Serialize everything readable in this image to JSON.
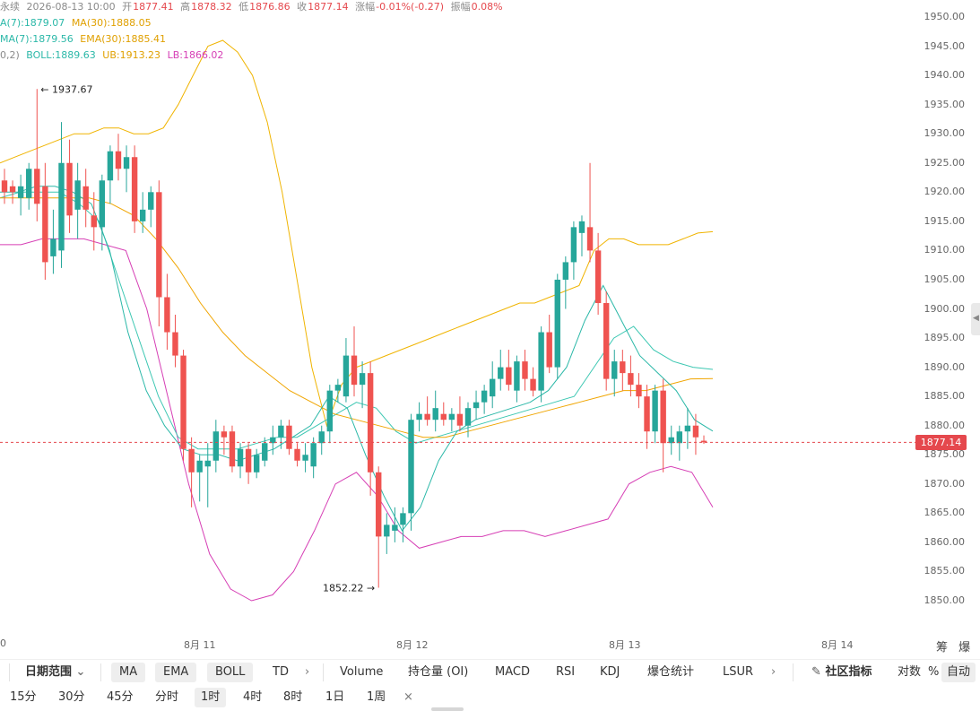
{
  "legend": {
    "line1": {
      "symbol": "永续",
      "datetime": "2026-08-13 10:00",
      "open_label": "开",
      "open": "1877.41",
      "high_label": "高",
      "high": "1878.32",
      "low_label": "低",
      "low": "1876.86",
      "close_label": "收",
      "close": "1877.14",
      "change_label": "涨幅",
      "change": "-0.01%(-0.27)",
      "amp_label": "振幅",
      "amp": "0.08%"
    },
    "line2": {
      "ma7": "A(7):1879.07",
      "ma30": "MA(30):1888.05"
    },
    "line3": {
      "ema7": "MA(7):1879.56",
      "ema30": "EMA(30):1885.41"
    },
    "line4": {
      "boll_params": "0,2)",
      "boll": "BOLL:1889.63",
      "ub": "UB:1913.23",
      "lb": "LB:1866.02"
    }
  },
  "colors": {
    "up": "#26a69a",
    "down": "#ef5350",
    "ma7": "#2bb8a8",
    "ma30": "#f0a500",
    "boll": "#3cc7b2",
    "ub": "#f0b400",
    "lb": "#d63fb5",
    "price_line": "#e5484d",
    "gray_text": "#8a8a8a"
  },
  "annotations": {
    "high_marker": "← 1937.67",
    "low_marker": "1852.22 →"
  },
  "y_axis": {
    "ticks": [
      "1950.00",
      "1945.00",
      "1940.00",
      "1935.00",
      "1930.00",
      "1925.00",
      "1920.00",
      "1915.00",
      "1910.00",
      "1905.00",
      "1900.00",
      "1895.00",
      "1890.00",
      "1885.00",
      "1880.00",
      "1875.00",
      "1870.00",
      "1865.00",
      "1860.00",
      "1855.00",
      "1850.00"
    ],
    "current_price": "1877.14"
  },
  "x_axis": {
    "labels": [
      "0",
      "8月 11",
      "8月 12",
      "8月 13",
      "8月 14"
    ],
    "corner": "筹 爆"
  },
  "toolbar": {
    "date_range": "日期范围",
    "indicators_main": [
      "MA",
      "EMA",
      "BOLL",
      "TD"
    ],
    "indicators_sub": [
      "Volume",
      "持仓量 (OI)",
      "MACD",
      "RSI",
      "KDJ",
      "爆仓统计",
      "LSUR"
    ],
    "community": "社区指标",
    "log": "对数",
    "percent": "%",
    "auto": "自动"
  },
  "intervals": {
    "items": [
      "15分",
      "30分",
      "45分",
      "分时",
      "1时",
      "4时",
      "8时",
      "1日",
      "1周"
    ],
    "active": "1时",
    "close": "×"
  },
  "chart_data": {
    "type": "candlestick",
    "title": "",
    "ylim": [
      1846,
      1952
    ],
    "y_ticks_step": 5,
    "series_candles": [
      {
        "t": 0,
        "o": 1922,
        "h": 1924,
        "l": 1918,
        "c": 1920
      },
      {
        "t": 1,
        "o": 1921,
        "h": 1922,
        "l": 1918,
        "c": 1920
      },
      {
        "t": 2,
        "o": 1919,
        "h": 1923,
        "l": 1916,
        "c": 1921
      },
      {
        "t": 3,
        "o": 1919,
        "h": 1925,
        "l": 1917,
        "c": 1924
      },
      {
        "t": 4,
        "o": 1924,
        "h": 1937.67,
        "l": 1915,
        "c": 1918
      },
      {
        "t": 5,
        "o": 1921,
        "h": 1925,
        "l": 1905,
        "c": 1908
      },
      {
        "t": 6,
        "o": 1909,
        "h": 1917,
        "l": 1906,
        "c": 1912
      },
      {
        "t": 7,
        "o": 1910,
        "h": 1932,
        "l": 1907,
        "c": 1925
      },
      {
        "t": 8,
        "o": 1925,
        "h": 1929,
        "l": 1913,
        "c": 1916
      },
      {
        "t": 9,
        "o": 1917,
        "h": 1925,
        "l": 1912,
        "c": 1922
      },
      {
        "t": 10,
        "o": 1921,
        "h": 1924,
        "l": 1914,
        "c": 1917
      },
      {
        "t": 11,
        "o": 1916,
        "h": 1920,
        "l": 1910,
        "c": 1914
      },
      {
        "t": 12,
        "o": 1914,
        "h": 1923,
        "l": 1910,
        "c": 1922
      },
      {
        "t": 13,
        "o": 1922,
        "h": 1928,
        "l": 1918,
        "c": 1927
      },
      {
        "t": 14,
        "o": 1927,
        "h": 1930,
        "l": 1922,
        "c": 1924
      },
      {
        "t": 15,
        "o": 1924,
        "h": 1928,
        "l": 1920,
        "c": 1926
      },
      {
        "t": 16,
        "o": 1926,
        "h": 1928,
        "l": 1913,
        "c": 1915
      },
      {
        "t": 17,
        "o": 1915,
        "h": 1920,
        "l": 1913,
        "c": 1917
      },
      {
        "t": 18,
        "o": 1917,
        "h": 1921,
        "l": 1914,
        "c": 1920
      },
      {
        "t": 19,
        "o": 1920,
        "h": 1922,
        "l": 1897,
        "c": 1902
      },
      {
        "t": 20,
        "o": 1902,
        "h": 1906,
        "l": 1893,
        "c": 1896
      },
      {
        "t": 21,
        "o": 1896,
        "h": 1899,
        "l": 1890,
        "c": 1892
      },
      {
        "t": 22,
        "o": 1892,
        "h": 1893,
        "l": 1874,
        "c": 1876
      },
      {
        "t": 23,
        "o": 1876,
        "h": 1878,
        "l": 1866,
        "c": 1872
      },
      {
        "t": 24,
        "o": 1872,
        "h": 1875,
        "l": 1867,
        "c": 1874
      },
      {
        "t": 25,
        "o": 1873,
        "h": 1877,
        "l": 1866,
        "c": 1874
      },
      {
        "t": 26,
        "o": 1874,
        "h": 1881,
        "l": 1872,
        "c": 1879
      },
      {
        "t": 27,
        "o": 1879,
        "h": 1880,
        "l": 1875,
        "c": 1878
      },
      {
        "t": 28,
        "o": 1879,
        "h": 1880,
        "l": 1872,
        "c": 1873
      },
      {
        "t": 29,
        "o": 1873,
        "h": 1877,
        "l": 1871,
        "c": 1876
      },
      {
        "t": 30,
        "o": 1876,
        "h": 1877,
        "l": 1870,
        "c": 1872
      },
      {
        "t": 31,
        "o": 1872,
        "h": 1876,
        "l": 1871,
        "c": 1875
      },
      {
        "t": 32,
        "o": 1874,
        "h": 1878,
        "l": 1873,
        "c": 1877
      },
      {
        "t": 33,
        "o": 1877,
        "h": 1880,
        "l": 1875,
        "c": 1878
      },
      {
        "t": 34,
        "o": 1878,
        "h": 1881,
        "l": 1876,
        "c": 1880
      },
      {
        "t": 35,
        "o": 1880,
        "h": 1881,
        "l": 1875,
        "c": 1876
      },
      {
        "t": 36,
        "o": 1876,
        "h": 1877,
        "l": 1873,
        "c": 1874
      },
      {
        "t": 37,
        "o": 1874,
        "h": 1877,
        "l": 1872,
        "c": 1875
      },
      {
        "t": 38,
        "o": 1873,
        "h": 1878,
        "l": 1871,
        "c": 1877
      },
      {
        "t": 39,
        "o": 1877,
        "h": 1880,
        "l": 1875,
        "c": 1879
      },
      {
        "t": 40,
        "o": 1879,
        "h": 1887,
        "l": 1877,
        "c": 1886
      },
      {
        "t": 41,
        "o": 1886,
        "h": 1888,
        "l": 1884,
        "c": 1887
      },
      {
        "t": 42,
        "o": 1885,
        "h": 1895,
        "l": 1884,
        "c": 1892
      },
      {
        "t": 43,
        "o": 1892,
        "h": 1897,
        "l": 1885,
        "c": 1887
      },
      {
        "t": 44,
        "o": 1887,
        "h": 1891,
        "l": 1883,
        "c": 1889
      },
      {
        "t": 45,
        "o": 1889,
        "h": 1891,
        "l": 1868,
        "c": 1872
      },
      {
        "t": 46,
        "o": 1872,
        "h": 1873,
        "l": 1852.22,
        "c": 1861
      },
      {
        "t": 47,
        "o": 1861,
        "h": 1865,
        "l": 1858,
        "c": 1863
      },
      {
        "t": 48,
        "o": 1862,
        "h": 1866,
        "l": 1860,
        "c": 1863
      },
      {
        "t": 49,
        "o": 1863,
        "h": 1866,
        "l": 1860,
        "c": 1865
      },
      {
        "t": 50,
        "o": 1865,
        "h": 1882,
        "l": 1862,
        "c": 1881
      },
      {
        "t": 51,
        "o": 1881,
        "h": 1884,
        "l": 1879,
        "c": 1882
      },
      {
        "t": 52,
        "o": 1882,
        "h": 1885,
        "l": 1880,
        "c": 1881
      },
      {
        "t": 53,
        "o": 1881,
        "h": 1886,
        "l": 1879,
        "c": 1883
      },
      {
        "t": 54,
        "o": 1882,
        "h": 1884,
        "l": 1880,
        "c": 1881
      },
      {
        "t": 55,
        "o": 1881,
        "h": 1883,
        "l": 1879,
        "c": 1882
      },
      {
        "t": 56,
        "o": 1882,
        "h": 1885,
        "l": 1879,
        "c": 1880
      },
      {
        "t": 57,
        "o": 1880,
        "h": 1884,
        "l": 1878,
        "c": 1883
      },
      {
        "t": 58,
        "o": 1883,
        "h": 1886,
        "l": 1881,
        "c": 1884
      },
      {
        "t": 59,
        "o": 1884,
        "h": 1887,
        "l": 1882,
        "c": 1886
      },
      {
        "t": 60,
        "o": 1885,
        "h": 1891,
        "l": 1883,
        "c": 1888
      },
      {
        "t": 61,
        "o": 1888,
        "h": 1893,
        "l": 1886,
        "c": 1890
      },
      {
        "t": 62,
        "o": 1890,
        "h": 1893,
        "l": 1886,
        "c": 1887
      },
      {
        "t": 63,
        "o": 1886,
        "h": 1892,
        "l": 1884,
        "c": 1891
      },
      {
        "t": 64,
        "o": 1891,
        "h": 1893,
        "l": 1886,
        "c": 1888
      },
      {
        "t": 65,
        "o": 1888,
        "h": 1890,
        "l": 1885,
        "c": 1886
      },
      {
        "t": 66,
        "o": 1886,
        "h": 1897,
        "l": 1884,
        "c": 1896
      },
      {
        "t": 67,
        "o": 1896,
        "h": 1899,
        "l": 1889,
        "c": 1890
      },
      {
        "t": 68,
        "o": 1890,
        "h": 1906,
        "l": 1888,
        "c": 1905
      },
      {
        "t": 69,
        "o": 1905,
        "h": 1909,
        "l": 1900,
        "c": 1908
      },
      {
        "t": 70,
        "o": 1908,
        "h": 1915,
        "l": 1905,
        "c": 1914
      },
      {
        "t": 71,
        "o": 1913,
        "h": 1916,
        "l": 1909,
        "c": 1915
      },
      {
        "t": 72,
        "o": 1914,
        "h": 1925,
        "l": 1908,
        "c": 1910
      },
      {
        "t": 73,
        "o": 1910,
        "h": 1913,
        "l": 1899,
        "c": 1901
      },
      {
        "t": 74,
        "o": 1901,
        "h": 1903,
        "l": 1886,
        "c": 1888
      },
      {
        "t": 75,
        "o": 1888,
        "h": 1893,
        "l": 1885,
        "c": 1891
      },
      {
        "t": 76,
        "o": 1891,
        "h": 1893,
        "l": 1886,
        "c": 1889
      },
      {
        "t": 77,
        "o": 1889,
        "h": 1892,
        "l": 1885,
        "c": 1887
      },
      {
        "t": 78,
        "o": 1887,
        "h": 1889,
        "l": 1883,
        "c": 1885
      },
      {
        "t": 79,
        "o": 1885,
        "h": 1887,
        "l": 1876,
        "c": 1879
      },
      {
        "t": 80,
        "o": 1879,
        "h": 1887,
        "l": 1877,
        "c": 1886
      },
      {
        "t": 81,
        "o": 1886,
        "h": 1888,
        "l": 1872,
        "c": 1877
      },
      {
        "t": 82,
        "o": 1877,
        "h": 1880,
        "l": 1875,
        "c": 1878
      },
      {
        "t": 83,
        "o": 1877,
        "h": 1880,
        "l": 1874,
        "c": 1879
      },
      {
        "t": 84,
        "o": 1879,
        "h": 1883,
        "l": 1876,
        "c": 1880
      },
      {
        "t": 85,
        "o": 1880,
        "h": 1882,
        "l": 1875,
        "c": 1878
      },
      {
        "t": 86,
        "o": 1877.41,
        "h": 1878.32,
        "l": 1876.86,
        "c": 1877.14
      }
    ],
    "series_lines": [
      {
        "key": "ub",
        "points": [
          1925,
          1926,
          1927,
          1928,
          1929,
          1930,
          1930,
          1931,
          1931,
          1930,
          1930,
          1931,
          1935,
          1940,
          1945,
          1946,
          1944,
          1940,
          1932,
          1920,
          1905,
          1890,
          1880,
          1887,
          1890,
          1891,
          1892,
          1893,
          1894,
          1895,
          1896,
          1897,
          1898,
          1899,
          1900,
          1901,
          1901,
          1902,
          1903,
          1904,
          1910,
          1912,
          1912,
          1911,
          1911,
          1911,
          1912,
          1913,
          1913.23
        ]
      },
      {
        "key": "lb",
        "points": [
          1911,
          1911,
          1912,
          1912,
          1912,
          1911,
          1910,
          1900,
          1885,
          1870,
          1858,
          1852,
          1850,
          1851,
          1855,
          1862,
          1870,
          1872,
          1868,
          1862,
          1859,
          1860,
          1861,
          1861,
          1862,
          1862,
          1861,
          1862,
          1863,
          1864,
          1870,
          1872,
          1873,
          1872,
          1866.02
        ]
      },
      {
        "key": "boll",
        "points": [
          1919,
          1920,
          1920,
          1920,
          1918,
          1915,
          1905,
          1895,
          1885,
          1878,
          1876,
          1876,
          1876,
          1877,
          1878,
          1878,
          1880,
          1882,
          1884,
          1883,
          1879,
          1877,
          1878,
          1879,
          1880,
          1881,
          1882,
          1883,
          1884,
          1885,
          1890,
          1895,
          1897,
          1893,
          1891,
          1890,
          1889.63
        ]
      },
      {
        "key": "ma30",
        "points": [
          1919,
          1919,
          1919,
          1919,
          1919,
          1918,
          1916,
          1912,
          1907,
          1901,
          1896,
          1892,
          1889,
          1886,
          1884,
          1882,
          1881,
          1880,
          1879,
          1878,
          1878,
          1879,
          1880,
          1881,
          1882,
          1883,
          1884,
          1885,
          1886,
          1886,
          1887,
          1888,
          1888.05
        ]
      },
      {
        "key": "ma7",
        "points": [
          1920,
          1920,
          1921,
          1921,
          1920,
          1918,
          1910,
          1896,
          1886,
          1880,
          1876,
          1875,
          1875,
          1874,
          1875,
          1876,
          1878,
          1880,
          1885,
          1883,
          1875,
          1868,
          1862,
          1866,
          1874,
          1879,
          1881,
          1882,
          1883,
          1884,
          1886,
          1890,
          1898,
          1904,
          1898,
          1892,
          1889,
          1886,
          1881,
          1879.07
        ]
      }
    ],
    "x_labels": [
      "8月 11",
      "8月 12",
      "8月 13",
      "8月 14"
    ]
  }
}
